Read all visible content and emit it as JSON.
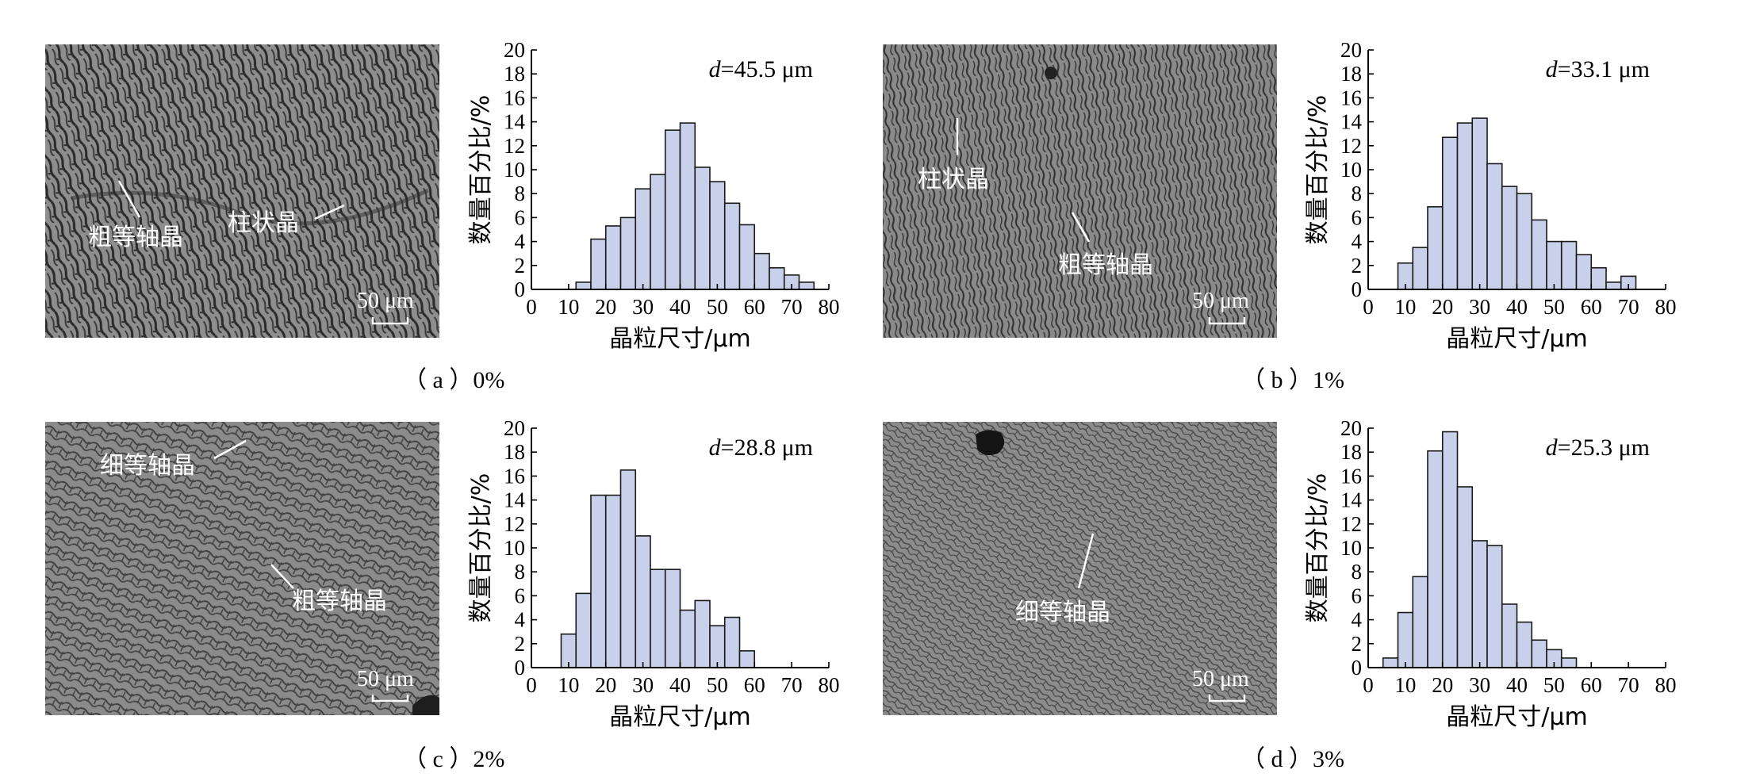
{
  "chart_data": [
    {
      "type": "bar",
      "caption": "（ a ）0%",
      "annotation": {
        "symbol": "d",
        "value": "=45.5 μm"
      },
      "xlabel": "晶粒尺寸/μm",
      "ylabel": "数量百分比/%",
      "xlim": [
        0,
        80
      ],
      "ylim": [
        0,
        20
      ],
      "xticks": [
        0,
        10,
        20,
        30,
        40,
        50,
        60,
        70,
        80
      ],
      "yticks": [
        0,
        2,
        4,
        6,
        8,
        10,
        12,
        14,
        16,
        18,
        20
      ],
      "bin_width": 4,
      "bins": [
        {
          "x": 12,
          "value": 0.6
        },
        {
          "x": 16,
          "value": 4.2
        },
        {
          "x": 20,
          "value": 5.3
        },
        {
          "x": 24,
          "value": 6.0
        },
        {
          "x": 28,
          "value": 8.4
        },
        {
          "x": 32,
          "value": 9.6
        },
        {
          "x": 36,
          "value": 13.3
        },
        {
          "x": 40,
          "value": 13.9
        },
        {
          "x": 44,
          "value": 10.2
        },
        {
          "x": 48,
          "value": 9.0
        },
        {
          "x": 52,
          "value": 7.2
        },
        {
          "x": 56,
          "value": 5.4
        },
        {
          "x": 60,
          "value": 3.0
        },
        {
          "x": 64,
          "value": 1.8
        },
        {
          "x": 68,
          "value": 1.2
        },
        {
          "x": 72,
          "value": 0.6
        }
      ],
      "micrograph": {
        "labels": [
          "粗等轴晶",
          "柱状晶"
        ],
        "scale_bar": "50 μm"
      }
    },
    {
      "type": "bar",
      "caption": "（ b ）1%",
      "annotation": {
        "symbol": "d",
        "value": "=33.1 μm"
      },
      "xlabel": "晶粒尺寸/μm",
      "ylabel": "数量百分比/%",
      "xlim": [
        0,
        80
      ],
      "ylim": [
        0,
        20
      ],
      "xticks": [
        0,
        10,
        20,
        30,
        40,
        50,
        60,
        70,
        80
      ],
      "yticks": [
        0,
        2,
        4,
        6,
        8,
        10,
        12,
        14,
        16,
        18,
        20
      ],
      "bin_width": 4,
      "bins": [
        {
          "x": 8,
          "value": 2.2
        },
        {
          "x": 12,
          "value": 3.5
        },
        {
          "x": 16,
          "value": 6.9
        },
        {
          "x": 20,
          "value": 12.7
        },
        {
          "x": 24,
          "value": 13.9
        },
        {
          "x": 28,
          "value": 14.3
        },
        {
          "x": 32,
          "value": 10.5
        },
        {
          "x": 36,
          "value": 8.6
        },
        {
          "x": 40,
          "value": 8.0
        },
        {
          "x": 44,
          "value": 5.8
        },
        {
          "x": 48,
          "value": 4.0
        },
        {
          "x": 52,
          "value": 4.0
        },
        {
          "x": 56,
          "value": 2.9
        },
        {
          "x": 60,
          "value": 1.8
        },
        {
          "x": 64,
          "value": 0.6
        },
        {
          "x": 68,
          "value": 1.1
        }
      ],
      "micrograph": {
        "labels": [
          "柱状晶",
          "粗等轴晶"
        ],
        "scale_bar": "50 μm"
      }
    },
    {
      "type": "bar",
      "caption": "（ c ）2%",
      "annotation": {
        "symbol": "d",
        "value": "=28.8 μm"
      },
      "xlabel": "晶粒尺寸/μm",
      "ylabel": "数量百分比/%",
      "xlim": [
        0,
        80
      ],
      "ylim": [
        0,
        20
      ],
      "xticks": [
        0,
        10,
        20,
        30,
        40,
        50,
        60,
        70,
        80
      ],
      "yticks": [
        0,
        2,
        4,
        6,
        8,
        10,
        12,
        14,
        16,
        18,
        20
      ],
      "bin_width": 4,
      "bins": [
        {
          "x": 8,
          "value": 2.8
        },
        {
          "x": 12,
          "value": 6.2
        },
        {
          "x": 16,
          "value": 14.4
        },
        {
          "x": 20,
          "value": 14.4
        },
        {
          "x": 24,
          "value": 16.5
        },
        {
          "x": 28,
          "value": 11.0
        },
        {
          "x": 32,
          "value": 8.2
        },
        {
          "x": 36,
          "value": 8.2
        },
        {
          "x": 40,
          "value": 4.8
        },
        {
          "x": 44,
          "value": 5.6
        },
        {
          "x": 48,
          "value": 3.5
        },
        {
          "x": 52,
          "value": 4.2
        },
        {
          "x": 56,
          "value": 1.4
        }
      ],
      "micrograph": {
        "labels": [
          "细等轴晶",
          "粗等轴晶"
        ],
        "scale_bar": "50 μm"
      }
    },
    {
      "type": "bar",
      "caption": "（ d ）3%",
      "annotation": {
        "symbol": "d",
        "value": "=25.3 μm"
      },
      "xlabel": "晶粒尺寸/μm",
      "ylabel": "数量百分比/%",
      "xlim": [
        0,
        80
      ],
      "ylim": [
        0,
        20
      ],
      "xticks": [
        0,
        10,
        20,
        30,
        40,
        50,
        60,
        70,
        80
      ],
      "yticks": [
        0,
        2,
        4,
        6,
        8,
        10,
        12,
        14,
        16,
        18,
        20
      ],
      "bin_width": 4,
      "bins": [
        {
          "x": 4,
          "value": 0.8
        },
        {
          "x": 8,
          "value": 4.6
        },
        {
          "x": 12,
          "value": 7.6
        },
        {
          "x": 16,
          "value": 18.1
        },
        {
          "x": 20,
          "value": 19.7
        },
        {
          "x": 24,
          "value": 15.1
        },
        {
          "x": 28,
          "value": 10.6
        },
        {
          "x": 32,
          "value": 10.2
        },
        {
          "x": 36,
          "value": 5.3
        },
        {
          "x": 40,
          "value": 3.8
        },
        {
          "x": 44,
          "value": 2.3
        },
        {
          "x": 48,
          "value": 1.5
        },
        {
          "x": 52,
          "value": 0.8
        }
      ],
      "micrograph": {
        "labels": [
          "细等轴晶"
        ],
        "scale_bar": "50 μm"
      }
    }
  ],
  "colors": {
    "bar_fill": "#c8d0ea",
    "bar_stroke": "#1a1a1a",
    "micrograph_base": "#8d8d8d"
  }
}
